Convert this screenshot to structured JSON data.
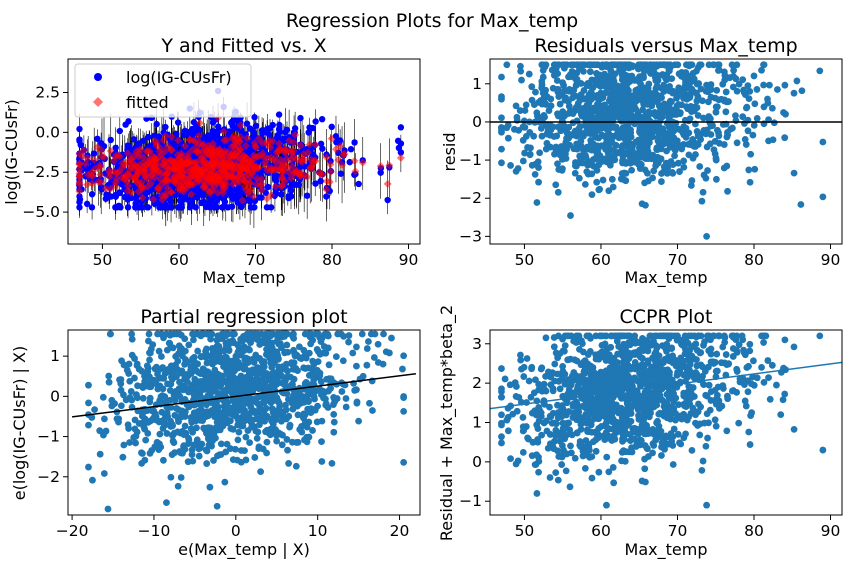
{
  "figure": {
    "suptitle": "Regression Plots for Max_temp"
  },
  "colors": {
    "observed": "#0000ff",
    "fitted": "#ff0000",
    "scatter": "#1f77b4",
    "reference_line": "#000000",
    "ccpr_line": "#1f77b4",
    "errorbar": "#000000"
  },
  "chart_data": [
    {
      "type": "scatter",
      "title": "Y and Fitted vs. X",
      "xlabel": "Max_temp",
      "ylabel": "log(IG-CUsFr)",
      "xlim": [
        45.5,
        91.5
      ],
      "ylim": [
        -7,
        4.6
      ],
      "xticks": [
        50,
        60,
        70,
        80,
        90
      ],
      "yticks": [
        -5.0,
        -2.5,
        0.0,
        2.5
      ],
      "ytick_labels": [
        "−5.0",
        "−2.5",
        "0.0",
        "2.5"
      ],
      "legend": {
        "entries": [
          "log(IG-CUsFr)",
          "fitted"
        ],
        "placement": "upper-left"
      },
      "series": [
        {
          "name": "log(IG-CUsFr)",
          "marker": "circle",
          "color": "#0000ff",
          "n_points": 1400,
          "x_center": 63,
          "x_spread": 7,
          "y_center": -2.2,
          "y_spread": 1.4,
          "y_range": [
            -4.7,
            2.6
          ]
        },
        {
          "name": "fitted",
          "marker": "diamond",
          "color": "#ff0000",
          "n_points": 1400,
          "y_center": -2.0,
          "y_spread": 1.1,
          "errorbars": true
        }
      ]
    },
    {
      "type": "scatter",
      "title": "Residuals versus Max_temp",
      "xlabel": "Max_temp",
      "ylabel": "resid",
      "xlim": [
        45.5,
        91.5
      ],
      "ylim": [
        -3.2,
        1.65
      ],
      "xticks": [
        50,
        60,
        70,
        80,
        90
      ],
      "yticks": [
        -3,
        -2,
        -1,
        0,
        1
      ],
      "ytick_labels": [
        "−3",
        "−2",
        "−1",
        "0",
        "1"
      ],
      "series": [
        {
          "marker": "circle",
          "color": "#1f77b4",
          "n_points": 1300,
          "y_range": [
            -3.0,
            1.5
          ]
        }
      ],
      "reference_line": {
        "y": 0,
        "color": "#000000"
      }
    },
    {
      "type": "scatter",
      "title": "Partial regression plot",
      "xlabel": "e(Max_temp | X)",
      "ylabel": "e(log(IG-CUsFr) | X)",
      "xlim": [
        -20.5,
        22.5
      ],
      "ylim": [
        -2.95,
        1.65
      ],
      "xticks": [
        -20,
        -10,
        0,
        10,
        20
      ],
      "xtick_labels": [
        "−20",
        "−10",
        "0",
        "10",
        "20"
      ],
      "yticks": [
        -2,
        -1,
        0,
        1
      ],
      "ytick_labels": [
        "−2",
        "−1",
        "0",
        "1"
      ],
      "series": [
        {
          "marker": "circle",
          "color": "#1f77b4",
          "n_points": 1300,
          "y_range": [
            -2.8,
            1.55
          ]
        }
      ],
      "fit_line": {
        "slope": 0.0255,
        "intercept": 0.0,
        "color": "#000000"
      }
    },
    {
      "type": "scatter",
      "title": "CCPR Plot",
      "xlabel": "Max_temp",
      "ylabel": "Residual + Max_temp*beta_2",
      "xlim": [
        45.5,
        91.5
      ],
      "ylim": [
        -1.35,
        3.35
      ],
      "xticks": [
        50,
        60,
        70,
        80,
        90
      ],
      "yticks": [
        -1,
        0,
        1,
        2,
        3
      ],
      "ytick_labels": [
        "−1",
        "0",
        "1",
        "2",
        "3"
      ],
      "series": [
        {
          "marker": "circle",
          "color": "#1f77b4",
          "n_points": 1300,
          "y_range": [
            -1.1,
            3.2
          ]
        }
      ],
      "fit_line": {
        "slope": 0.0255,
        "intercept": 0.0,
        "color": "#1f77b4"
      }
    }
  ]
}
